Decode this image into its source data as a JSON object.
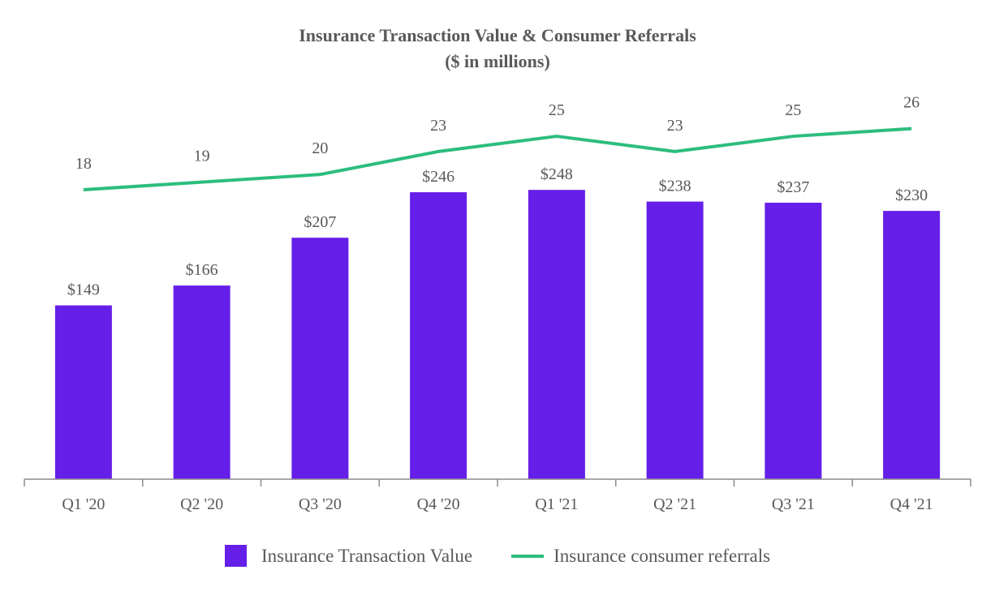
{
  "chart_data": {
    "type": "bar",
    "title": "Insurance Transaction Value & Consumer Referrals",
    "subtitle": "($ in millions)",
    "categories": [
      "Q1 '20",
      "Q2 '20",
      "Q3 '20",
      "Q4 '20",
      "Q1 '21",
      "Q2 '21",
      "Q3 '21",
      "Q4 '21"
    ],
    "series": [
      {
        "name": "Insurance Transaction Value",
        "type": "bar",
        "color": "#651FE8",
        "values": [
          149,
          166,
          207,
          246,
          248,
          238,
          237,
          230
        ],
        "labels": [
          "$149",
          "$166",
          "$207",
          "$246",
          "$248",
          "$238",
          "$237",
          "$230"
        ]
      },
      {
        "name": "Insurance consumer referrals",
        "type": "line",
        "color": "#2DBD7E",
        "values": [
          18,
          19,
          20,
          23,
          25,
          23,
          25,
          26
        ],
        "labels": [
          "18",
          "19",
          "20",
          "23",
          "25",
          "23",
          "25",
          "26"
        ]
      }
    ],
    "legend_position": "bottom",
    "grid": false
  }
}
